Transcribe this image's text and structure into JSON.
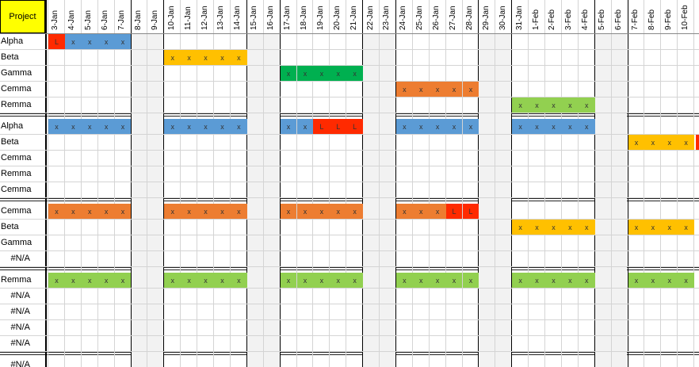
{
  "header": {
    "project_label": "Project",
    "dates": [
      "3-Jan",
      "4-Jan",
      "5-Jan",
      "6-Jan",
      "7-Jan",
      "8-Jan",
      "9-Jan",
      "10-Jan",
      "11-Jan",
      "12-Jan",
      "13-Jan",
      "14-Jan",
      "15-Jan",
      "16-Jan",
      "17-Jan",
      "18-Jan",
      "19-Jan",
      "20-Jan",
      "21-Jan",
      "22-Jan",
      "23-Jan",
      "24-Jan",
      "25-Jan",
      "26-Jan",
      "27-Jan",
      "28-Jan",
      "29-Jan",
      "30-Jan",
      "31-Jan",
      "1-Feb",
      "2-Feb",
      "3-Feb",
      "4-Feb",
      "5-Feb",
      "6-Feb",
      "7-Feb",
      "8-Feb",
      "9-Feb",
      "10-Feb"
    ],
    "weekend_indices": [
      5,
      6,
      12,
      13,
      19,
      20,
      26,
      27,
      33,
      34
    ]
  },
  "colors": {
    "blue": "#5b9bd5",
    "orange_dark": "#ed7d31",
    "red": "#ff2a00",
    "yellow": "#ffc000",
    "green_dark": "#00b050",
    "green_light": "#92d050",
    "header_yellow": "#ffff00"
  },
  "groups": [
    {
      "rows": [
        {
          "label": "Alpha",
          "cells": [
            [
              "red",
              "L"
            ],
            [
              "blue",
              "x"
            ],
            [
              "blue",
              "x"
            ],
            [
              "blue",
              "x"
            ],
            [
              "blue",
              "x"
            ]
          ],
          "start": 0
        },
        {
          "label": "Beta",
          "cells": [
            [
              "yellow",
              "x"
            ],
            [
              "yellow",
              "x"
            ],
            [
              "yellow",
              "x"
            ],
            [
              "yellow",
              "x"
            ],
            [
              "yellow",
              "x"
            ]
          ],
          "start": 7
        },
        {
          "label": "Gamma",
          "cells": [
            [
              "green_dark",
              "x"
            ],
            [
              "green_dark",
              "x"
            ],
            [
              "green_dark",
              "x"
            ],
            [
              "green_dark",
              "x"
            ],
            [
              "green_dark",
              "x"
            ]
          ],
          "start": 14
        },
        {
          "label": "Cemma",
          "cells": [
            [
              "orange_dark",
              "x"
            ],
            [
              "orange_dark",
              "x"
            ],
            [
              "orange_dark",
              "x"
            ],
            [
              "orange_dark",
              "x"
            ],
            [
              "orange_dark",
              "x"
            ]
          ],
          "start": 21
        },
        {
          "label": "Remma",
          "cells": [
            [
              "green_light",
              "x"
            ],
            [
              "green_light",
              "x"
            ],
            [
              "green_light",
              "x"
            ],
            [
              "green_light",
              "x"
            ],
            [
              "green_light",
              "x"
            ]
          ],
          "start": 28
        }
      ]
    },
    {
      "rows": [
        {
          "label": "Alpha",
          "segments": [
            {
              "start": 0,
              "cells": [
                [
                  "blue",
                  "x"
                ],
                [
                  "blue",
                  "x"
                ],
                [
                  "blue",
                  "x"
                ],
                [
                  "blue",
                  "x"
                ],
                [
                  "blue",
                  "x"
                ]
              ]
            },
            {
              "start": 7,
              "cells": [
                [
                  "blue",
                  "x"
                ],
                [
                  "blue",
                  "x"
                ],
                [
                  "blue",
                  "x"
                ],
                [
                  "blue",
                  "x"
                ],
                [
                  "blue",
                  "x"
                ]
              ]
            },
            {
              "start": 14,
              "cells": [
                [
                  "blue",
                  "x"
                ],
                [
                  "blue",
                  "x"
                ],
                [
                  "red",
                  "L"
                ],
                [
                  "red",
                  "L"
                ],
                [
                  "red",
                  "L"
                ]
              ]
            },
            {
              "start": 21,
              "cells": [
                [
                  "blue",
                  "x"
                ],
                [
                  "blue",
                  "x"
                ],
                [
                  "blue",
                  "x"
                ],
                [
                  "blue",
                  "x"
                ],
                [
                  "blue",
                  "x"
                ]
              ]
            },
            {
              "start": 28,
              "cells": [
                [
                  "blue",
                  "x"
                ],
                [
                  "blue",
                  "x"
                ],
                [
                  "blue",
                  "x"
                ],
                [
                  "blue",
                  "x"
                ],
                [
                  "blue",
                  "x"
                ]
              ]
            }
          ]
        },
        {
          "label": "Beta",
          "segments": [
            {
              "start": 35,
              "cells": [
                [
                  "yellow",
                  "x"
                ],
                [
                  "yellow",
                  "x"
                ],
                [
                  "yellow",
                  "x"
                ],
                [
                  "yellow",
                  "x"
                ]
              ]
            }
          ]
        },
        {
          "label": "Cemma",
          "segments": []
        },
        {
          "label": "Remma",
          "segments": []
        },
        {
          "label": "Cemma",
          "segments": []
        }
      ]
    },
    {
      "rows": [
        {
          "label": "Cemma",
          "segments": [
            {
              "start": 0,
              "cells": [
                [
                  "orange_dark",
                  "x"
                ],
                [
                  "orange_dark",
                  "x"
                ],
                [
                  "orange_dark",
                  "x"
                ],
                [
                  "orange_dark",
                  "x"
                ],
                [
                  "orange_dark",
                  "x"
                ]
              ]
            },
            {
              "start": 7,
              "cells": [
                [
                  "orange_dark",
                  "x"
                ],
                [
                  "orange_dark",
                  "x"
                ],
                [
                  "orange_dark",
                  "x"
                ],
                [
                  "orange_dark",
                  "x"
                ],
                [
                  "orange_dark",
                  "x"
                ]
              ]
            },
            {
              "start": 14,
              "cells": [
                [
                  "orange_dark",
                  "x"
                ],
                [
                  "orange_dark",
                  "x"
                ],
                [
                  "orange_dark",
                  "x"
                ],
                [
                  "orange_dark",
                  "x"
                ],
                [
                  "orange_dark",
                  "x"
                ]
              ]
            },
            {
              "start": 21,
              "cells": [
                [
                  "orange_dark",
                  "x"
                ],
                [
                  "orange_dark",
                  "x"
                ],
                [
                  "orange_dark",
                  "x"
                ],
                [
                  "red",
                  "L"
                ],
                [
                  "red",
                  "L"
                ]
              ]
            }
          ]
        },
        {
          "label": "Beta",
          "segments": [
            {
              "start": 28,
              "cells": [
                [
                  "yellow",
                  "x"
                ],
                [
                  "yellow",
                  "x"
                ],
                [
                  "yellow",
                  "x"
                ],
                [
                  "yellow",
                  "x"
                ],
                [
                  "yellow",
                  "x"
                ]
              ]
            },
            {
              "start": 35,
              "cells": [
                [
                  "yellow",
                  "x"
                ],
                [
                  "yellow",
                  "x"
                ],
                [
                  "yellow",
                  "x"
                ],
                [
                  "yellow",
                  "x"
                ]
              ]
            }
          ]
        },
        {
          "label": "Gamma",
          "segments": []
        },
        {
          "label": "#N/A",
          "segments": []
        }
      ]
    },
    {
      "rows": [
        {
          "label": "Remma",
          "segments": [
            {
              "start": 0,
              "cells": [
                [
                  "green_light",
                  "x"
                ],
                [
                  "green_light",
                  "x"
                ],
                [
                  "green_light",
                  "x"
                ],
                [
                  "green_light",
                  "x"
                ],
                [
                  "green_light",
                  "x"
                ]
              ]
            },
            {
              "start": 7,
              "cells": [
                [
                  "green_light",
                  "x"
                ],
                [
                  "green_light",
                  "x"
                ],
                [
                  "green_light",
                  "x"
                ],
                [
                  "green_light",
                  "x"
                ],
                [
                  "green_light",
                  "x"
                ]
              ]
            },
            {
              "start": 14,
              "cells": [
                [
                  "green_light",
                  "x"
                ],
                [
                  "green_light",
                  "x"
                ],
                [
                  "green_light",
                  "x"
                ],
                [
                  "green_light",
                  "x"
                ],
                [
                  "green_light",
                  "x"
                ]
              ]
            },
            {
              "start": 21,
              "cells": [
                [
                  "green_light",
                  "x"
                ],
                [
                  "green_light",
                  "x"
                ],
                [
                  "green_light",
                  "x"
                ],
                [
                  "green_light",
                  "x"
                ],
                [
                  "green_light",
                  "x"
                ]
              ]
            },
            {
              "start": 28,
              "cells": [
                [
                  "green_light",
                  "x"
                ],
                [
                  "green_light",
                  "x"
                ],
                [
                  "green_light",
                  "x"
                ],
                [
                  "green_light",
                  "x"
                ],
                [
                  "green_light",
                  "x"
                ]
              ]
            },
            {
              "start": 35,
              "cells": [
                [
                  "green_light",
                  "x"
                ],
                [
                  "green_light",
                  "x"
                ],
                [
                  "green_light",
                  "x"
                ],
                [
                  "green_light",
                  "x"
                ]
              ]
            }
          ]
        },
        {
          "label": "#N/A",
          "segments": []
        },
        {
          "label": "#N/A",
          "segments": []
        },
        {
          "label": "#N/A",
          "segments": []
        },
        {
          "label": "#N/A",
          "segments": []
        }
      ]
    },
    {
      "rows": [
        {
          "label": "#N/A",
          "segments": []
        }
      ]
    }
  ]
}
